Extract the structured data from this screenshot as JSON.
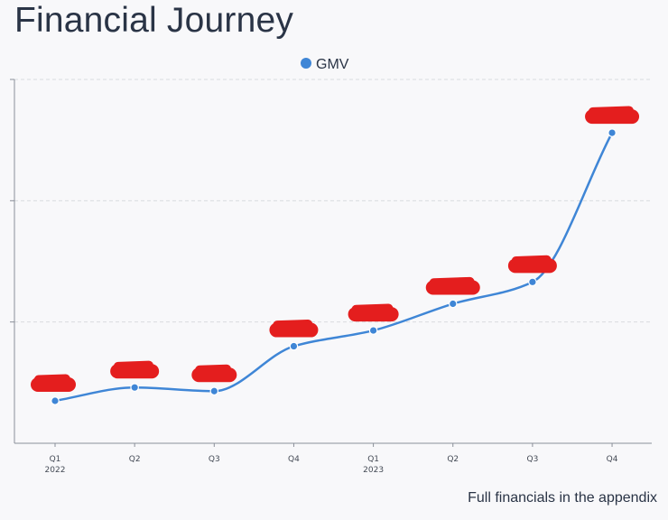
{
  "title": "Financial Journey",
  "footnote": "Full financials in the appendix",
  "chart_data": {
    "type": "line",
    "title": "Financial Journey",
    "xlabel": "",
    "ylabel": "",
    "categories": [
      "Q1 2022",
      "Q2 2022",
      "Q3 2022",
      "Q4 2022",
      "Q1 2023",
      "Q2 2023",
      "Q3 2023",
      "Q4 2023"
    ],
    "tick_labels": [
      [
        "Q1",
        "2022"
      ],
      [
        "Q2"
      ],
      [
        "Q3"
      ],
      [
        "Q4"
      ],
      [
        "Q1",
        "2023"
      ],
      [
        "Q2"
      ],
      [
        "Q3"
      ],
      [
        "Q4"
      ]
    ],
    "series": [
      {
        "name": "GMV",
        "color": "#3f86d6",
        "values": [
          0.35,
          0.46,
          0.43,
          0.8,
          0.93,
          1.15,
          1.33,
          2.56
        ]
      }
    ],
    "data_labels_redacted": true,
    "redaction_color": "#e41e1e",
    "ylim": [
      0,
      3
    ],
    "gridlines": [
      1,
      2,
      3
    ],
    "grid": true,
    "legend": "top-center"
  }
}
